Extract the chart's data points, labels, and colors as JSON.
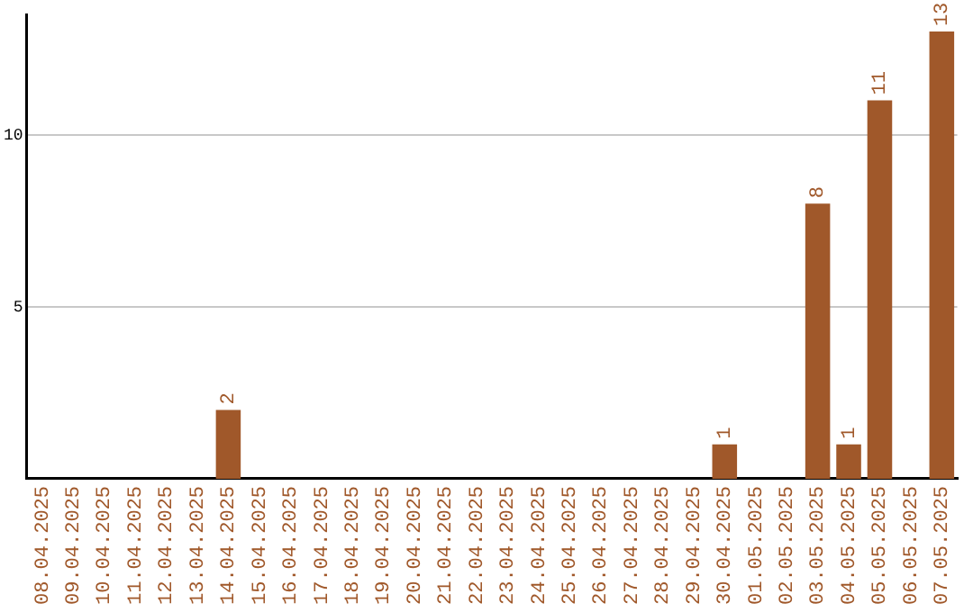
{
  "chart_data": {
    "type": "bar",
    "categories": [
      "08.04.2025",
      "09.04.2025",
      "10.04.2025",
      "11.04.2025",
      "12.04.2025",
      "13.04.2025",
      "14.04.2025",
      "15.04.2025",
      "16.04.2025",
      "17.04.2025",
      "18.04.2025",
      "19.04.2025",
      "20.04.2025",
      "21.04.2025",
      "22.04.2025",
      "23.04.2025",
      "24.04.2025",
      "25.04.2025",
      "26.04.2025",
      "27.04.2025",
      "28.04.2025",
      "29.04.2025",
      "30.04.2025",
      "01.05.2025",
      "02.05.2025",
      "03.05.2025",
      "04.05.2025",
      "05.05.2025",
      "06.05.2025",
      "07.05.2025"
    ],
    "values": [
      0,
      0,
      0,
      0,
      0,
      0,
      2,
      0,
      0,
      0,
      0,
      0,
      0,
      0,
      0,
      0,
      0,
      0,
      0,
      0,
      0,
      0,
      1,
      0,
      0,
      8,
      1,
      11,
      0,
      13
    ],
    "value_labels": [
      null,
      null,
      null,
      null,
      null,
      null,
      "2",
      null,
      null,
      null,
      null,
      null,
      null,
      null,
      null,
      null,
      null,
      null,
      null,
      null,
      null,
      null,
      "1",
      null,
      null,
      "8",
      "1",
      "11",
      null,
      "13"
    ],
    "color": "#a0582a",
    "ylim": [
      0,
      13.5
    ],
    "yticks": [
      5,
      10
    ],
    "grid": "y",
    "legend": false
  }
}
